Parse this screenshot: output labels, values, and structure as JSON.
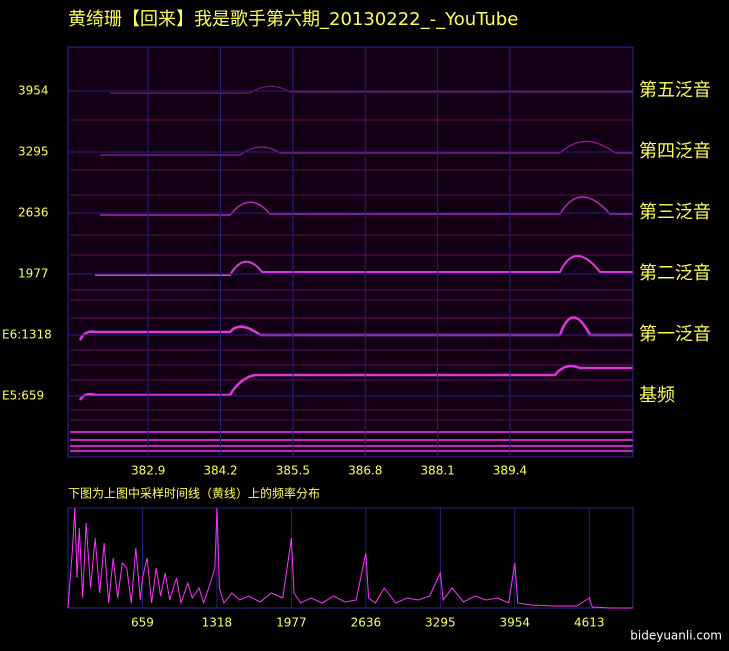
{
  "title": "黄绮珊【回来】我是歌手第六期_20130222_-_YouTube",
  "watermark": "bideyuanli.com",
  "chart_data": [
    {
      "type": "spectrogram",
      "xlim": [
        381.46,
        391.61
      ],
      "xticks": [
        382.9,
        384.2,
        385.5,
        386.8,
        388.1,
        389.4
      ],
      "ylim": [
        0,
        4430
      ],
      "yticks": [
        3954,
        3295,
        2636,
        1977,
        {
          "value": 1318,
          "label": "E6:1318"
        },
        {
          "value": 659,
          "label": "E5:659"
        }
      ],
      "grid": true,
      "grid_color": "#22227a",
      "color": "#ff33ff",
      "annotations": [
        {
          "text": "第五泛音",
          "y": 3954
        },
        {
          "text": "第四泛音",
          "y": 3295
        },
        {
          "text": "第三泛音",
          "y": 2636
        },
        {
          "text": "第二泛音",
          "y": 1977
        },
        {
          "text": "第一泛音",
          "y": 1318
        },
        {
          "text": "基频",
          "y": 659
        }
      ]
    },
    {
      "type": "line",
      "title": "下图为上图中采样时间线（黄线）上的频率分布",
      "color": "#ff33ff",
      "xlim": [
        0,
        5000
      ],
      "xticks": [
        659,
        1318,
        1977,
        2636,
        3295,
        3954,
        4613
      ],
      "ylim": [
        0,
        100
      ],
      "grid": true,
      "grid_color": "#22227a",
      "x": [
        0,
        40,
        60,
        80,
        100,
        130,
        160,
        200,
        240,
        280,
        320,
        360,
        400,
        440,
        480,
        520,
        560,
        600,
        640,
        659,
        700,
        740,
        780,
        820,
        860,
        900,
        960,
        1000,
        1060,
        1100,
        1160,
        1200,
        1260,
        1300,
        1318,
        1340,
        1380,
        1450,
        1520,
        1600,
        1700,
        1800,
        1900,
        1977,
        2000,
        2060,
        2150,
        2250,
        2350,
        2450,
        2550,
        2636,
        2660,
        2720,
        2800,
        2900,
        3000,
        3100,
        3200,
        3295,
        3320,
        3400,
        3500,
        3600,
        3700,
        3800,
        3900,
        3954,
        3980,
        4100,
        4300,
        4500,
        4613,
        4640,
        4800,
        5000
      ],
      "values": [
        0,
        60,
        100,
        30,
        80,
        10,
        85,
        20,
        70,
        15,
        65,
        5,
        50,
        10,
        45,
        40,
        5,
        60,
        8,
        30,
        50,
        5,
        40,
        12,
        35,
        8,
        30,
        5,
        25,
        10,
        20,
        5,
        25,
        40,
        100,
        20,
        5,
        15,
        8,
        12,
        6,
        15,
        10,
        70,
        15,
        5,
        10,
        5,
        12,
        6,
        8,
        55,
        10,
        5,
        20,
        5,
        10,
        8,
        12,
        35,
        8,
        20,
        6,
        12,
        8,
        10,
        5,
        45,
        5,
        3,
        2,
        2,
        10,
        1,
        0,
        0
      ]
    }
  ]
}
